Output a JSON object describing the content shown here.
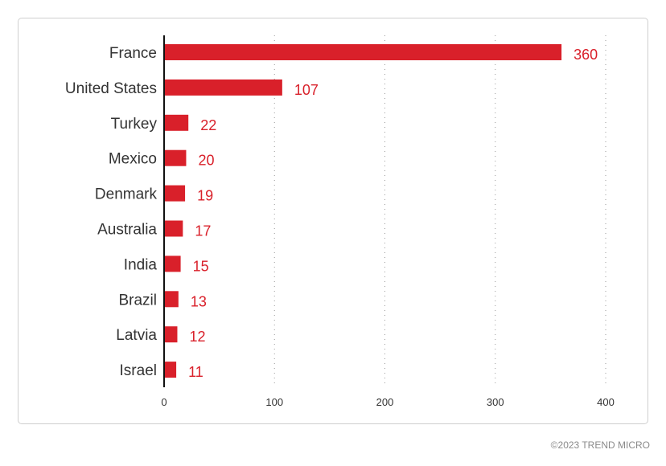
{
  "chart_data": {
    "type": "bar",
    "orientation": "horizontal",
    "categories": [
      "France",
      "United States",
      "Turkey",
      "Mexico",
      "Denmark",
      "Australia",
      "India",
      "Brazil",
      "Latvia",
      "Israel"
    ],
    "values": [
      360,
      107,
      22,
      20,
      19,
      17,
      15,
      13,
      12,
      11
    ],
    "value_labels": [
      "360",
      "107",
      "22",
      "20",
      "19",
      "17",
      "15",
      "13",
      "12",
      "11"
    ],
    "xlim": [
      0,
      400
    ],
    "xticks": [
      0,
      100,
      200,
      300,
      400
    ],
    "xtick_labels": [
      "0",
      "100",
      "200",
      "300",
      "400"
    ],
    "title": "",
    "xlabel": "",
    "ylabel": "",
    "grid": "vertical-dotted",
    "legend": "none"
  },
  "colors": {
    "bar": "#d9202a",
    "value_label": "#d9202a",
    "axis": "#111111",
    "grid": "#9a9a9a",
    "text": "#333333"
  },
  "footer": {
    "copyright": "©2023 TREND MICRO"
  }
}
